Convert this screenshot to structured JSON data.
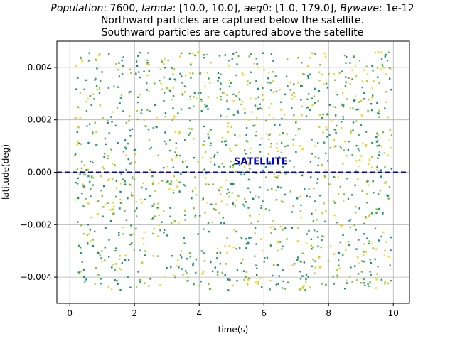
{
  "chart_data": {
    "type": "scatter",
    "title_parts": [
      {
        "text": "Population",
        "italic": true
      },
      {
        "text": ": 7600, ",
        "italic": false
      },
      {
        "text": "lamda",
        "italic": true
      },
      {
        "text": ": [10.0, 10.0], ",
        "italic": false
      },
      {
        "text": "aeq",
        "italic": true
      },
      {
        "text": "0: [1.0, 179.0], ",
        "italic": false
      },
      {
        "text": "Bywave",
        "italic": true
      },
      {
        "text": ": 1e-12",
        "italic": false
      }
    ],
    "subtitle_lines": [
      "Northward particles are captured below the satellite.",
      "Southward particles are captured above the satellite"
    ],
    "xlabel": "time(s)",
    "ylabel": "latitude(deg)",
    "xlim": [
      -0.4,
      10.5
    ],
    "ylim": [
      -0.005,
      0.005
    ],
    "x_ticks": [
      0,
      2,
      4,
      6,
      8,
      10
    ],
    "x_tick_labels": [
      "0",
      "2",
      "4",
      "6",
      "8",
      "10"
    ],
    "y_ticks": [
      -0.004,
      -0.002,
      0.0,
      0.002,
      0.004
    ],
    "y_tick_labels": [
      "−0.004",
      "−0.002",
      "0.000",
      "0.002",
      "0.004"
    ],
    "grid": true,
    "satellite": {
      "label": "SATELLITE",
      "latitude": 0.0,
      "color": "#0000cc",
      "line_style": "dashed",
      "label_x": 5.9,
      "label_y": 0.0003
    },
    "points": {
      "x_range": [
        0.15,
        9.95
      ],
      "y_range": [
        -0.0045,
        0.0046
      ],
      "count": 1400,
      "colors": [
        "#1f8a70",
        "#20a35c",
        "#3aa85a",
        "#7cc13a",
        "#b5cf2b",
        "#e8d01c",
        "#f2dc16",
        "#148a8a"
      ]
    }
  }
}
